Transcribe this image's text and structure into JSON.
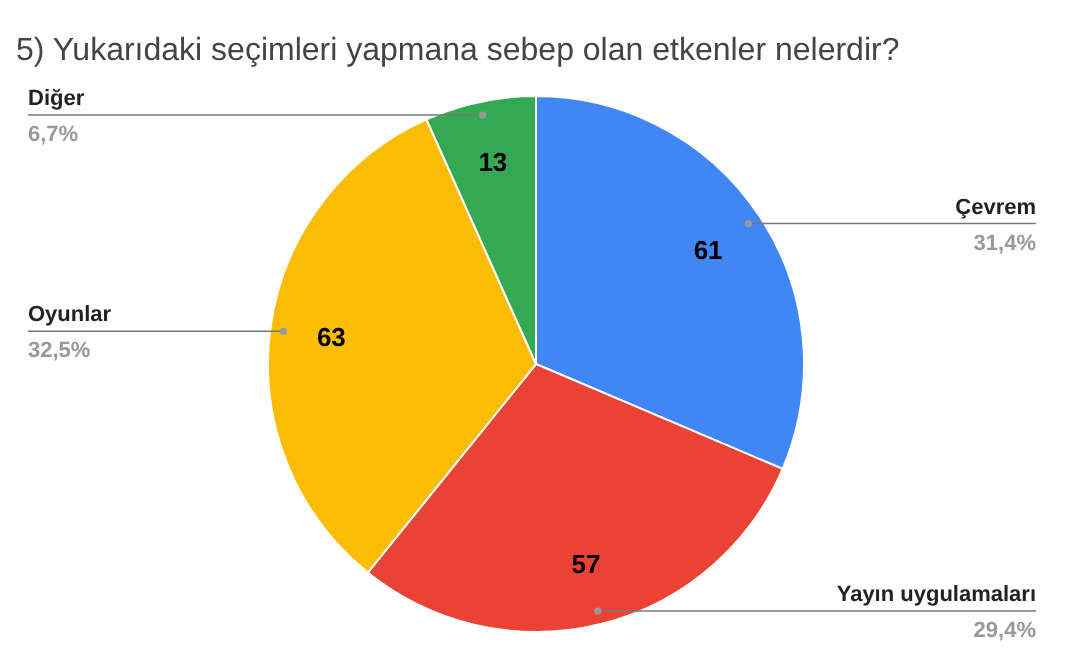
{
  "chart_data": {
    "type": "pie",
    "title": "5) Yukarıdaki seçimleri yapmana sebep olan etkenler nelerdir?",
    "categories": [
      "Çevrem",
      "Yayın uygulamaları",
      "Oyunlar",
      "Diğer"
    ],
    "values": [
      31.4,
      29.4,
      32.5,
      6.7
    ],
    "colors": [
      "#4285f4",
      "#ea4335",
      "#fbbc04",
      "#34a853"
    ],
    "value_labels": [
      "31,4%",
      "29,4%",
      "32,5%",
      "6,7%"
    ],
    "annotations": [
      "61",
      "57",
      "63",
      "13"
    ]
  }
}
